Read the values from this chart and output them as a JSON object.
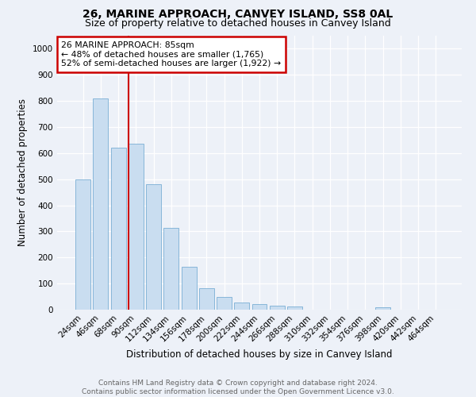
{
  "title": "26, MARINE APPROACH, CANVEY ISLAND, SS8 0AL",
  "subtitle": "Size of property relative to detached houses in Canvey Island",
  "xlabel": "Distribution of detached houses by size in Canvey Island",
  "ylabel": "Number of detached properties",
  "footer_line1": "Contains HM Land Registry data © Crown copyright and database right 2024.",
  "footer_line2": "Contains public sector information licensed under the Open Government Licence v3.0.",
  "categories": [
    "24sqm",
    "46sqm",
    "68sqm",
    "90sqm",
    "112sqm",
    "134sqm",
    "156sqm",
    "178sqm",
    "200sqm",
    "222sqm",
    "244sqm",
    "266sqm",
    "288sqm",
    "310sqm",
    "332sqm",
    "354sqm",
    "376sqm",
    "398sqm",
    "420sqm",
    "442sqm",
    "464sqm"
  ],
  "values": [
    500,
    810,
    620,
    635,
    480,
    315,
    165,
    82,
    50,
    28,
    22,
    15,
    12,
    0,
    0,
    0,
    0,
    10,
    0,
    0,
    0
  ],
  "bar_color": "#c9ddf0",
  "bar_edge_color": "#7aafd4",
  "annotation_text_line1": "26 MARINE APPROACH: 85sqm",
  "annotation_text_line2": "← 48% of detached houses are smaller (1,765)",
  "annotation_text_line3": "52% of semi-detached houses are larger (1,922) →",
  "annotation_box_color": "#ffffff",
  "annotation_box_edge": "#cc0000",
  "vline_color": "#cc0000",
  "ylim": [
    0,
    1050
  ],
  "yticks": [
    0,
    100,
    200,
    300,
    400,
    500,
    600,
    700,
    800,
    900,
    1000
  ],
  "bg_color": "#edf1f8",
  "grid_color": "#ffffff",
  "title_fontsize": 10,
  "subtitle_fontsize": 9,
  "tick_fontsize": 7.5,
  "label_fontsize": 8.5,
  "footer_fontsize": 6.5,
  "footer_color": "#666666"
}
